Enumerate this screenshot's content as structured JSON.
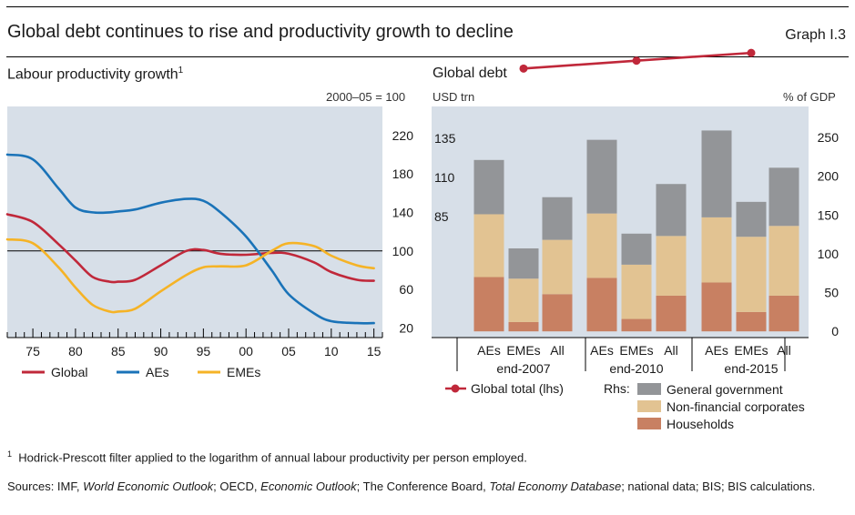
{
  "header": {
    "title": "Global debt continues to rise and productivity growth to decline",
    "graph_number": "Graph I.3"
  },
  "colors": {
    "global": "#c0283a",
    "aes": "#1a73b8",
    "emes": "#f5b326",
    "households": "#c88062",
    "non_financial_corporates": "#e2c392",
    "general_government": "#939598",
    "panel_bg": "#d7dfe8"
  },
  "chart_data": [
    {
      "type": "line",
      "title": "Labour productivity growth",
      "footnote_marker": "1",
      "unit_label": "2000–05 = 100",
      "x": [
        1972,
        1975,
        1978,
        1980,
        1982,
        1984,
        1985,
        1987,
        1990,
        1993,
        1995,
        1997,
        2000,
        2003,
        2005,
        2008,
        2010,
        2013,
        2015
      ],
      "series": [
        {
          "name": "Global",
          "color_key": "global",
          "values": [
            138,
            130,
            107,
            90,
            73,
            68,
            68,
            70,
            85,
            100,
            101,
            97,
            96,
            98,
            97,
            88,
            78,
            70,
            69
          ]
        },
        {
          "name": "AEs",
          "color_key": "aes",
          "values": [
            200,
            195,
            165,
            145,
            140,
            140,
            141,
            143,
            150,
            154,
            152,
            140,
            115,
            80,
            55,
            35,
            27,
            25,
            25
          ]
        },
        {
          "name": "EMEs",
          "color_key": "emes",
          "values": [
            112,
            108,
            83,
            62,
            44,
            37,
            37,
            40,
            58,
            75,
            83,
            84,
            85,
            100,
            108,
            105,
            95,
            85,
            82
          ]
        }
      ],
      "x_tick_labels": [
        "75",
        "80",
        "85",
        "90",
        "95",
        "00",
        "05",
        "10",
        "15"
      ],
      "x_tick_values": [
        1975,
        1980,
        1985,
        1990,
        1995,
        2000,
        2005,
        2010,
        2015
      ],
      "xlim": [
        1972,
        2016
      ],
      "y_tick_labels": [
        "20",
        "60",
        "100",
        "140",
        "180",
        "220"
      ],
      "y_tick_values": [
        20,
        60,
        100,
        140,
        180,
        220
      ],
      "ylim": [
        10,
        250
      ],
      "reference_line": 100,
      "y_axis_side": "right",
      "legend_placement": "bottom",
      "grid": false
    },
    {
      "type": "bar",
      "title": "Global debt",
      "left_axis_label": "USD trn",
      "right_axis_label": "% of GDP",
      "bar_labels": [
        "AEs",
        "EMEs",
        "All",
        "AEs",
        "EMEs",
        "All",
        "AEs",
        "EMEs",
        "All"
      ],
      "group_labels": [
        "end-2007",
        "end-2010",
        "end-2015"
      ],
      "stack_series": [
        {
          "name": "Households",
          "color_key": "households",
          "values": [
            70,
            12,
            48,
            69,
            16,
            46,
            63,
            25,
            46
          ]
        },
        {
          "name": "Non-financial corporates",
          "color_key": "non_financial_corporates",
          "values": [
            81,
            56,
            70,
            83,
            70,
            77,
            84,
            97,
            90
          ]
        },
        {
          "name": "General government",
          "color_key": "general_government",
          "values": [
            70,
            39,
            55,
            95,
            40,
            67,
            112,
            45,
            75
          ]
        }
      ],
      "stack_axis": "rhs",
      "line_series": {
        "name": "Global total (lhs)",
        "color_key": "global",
        "axis": "lhs",
        "values": [
          179,
          184,
          189
        ]
      },
      "left_y_tick_labels": [
        "85",
        "110",
        "135"
      ],
      "left_y_tick_values": [
        85,
        110,
        135
      ],
      "right_y_tick_labels": [
        "0",
        "50",
        "100",
        "150",
        "200",
        "250"
      ],
      "right_y_tick_values": [
        0,
        50,
        100,
        150,
        200,
        250
      ],
      "rhs_ylim": [
        -8,
        290
      ],
      "legend_rhs_label": "Rhs:",
      "legend_placement": "bottom"
    }
  ],
  "footnote": {
    "marker": "1",
    "text": "Hodrick-Prescott filter applied to the logarithm of annual labour productivity per person employed."
  },
  "sources": {
    "prefix": "Sources: IMF, ",
    "s1": "World Economic Outlook",
    "sep1": "; OECD, ",
    "s2": "Economic Outlook",
    "sep2": "; The Conference Board, ",
    "s3": "Total Economy Database",
    "suffix": "; national data; BIS; BIS calculations."
  }
}
